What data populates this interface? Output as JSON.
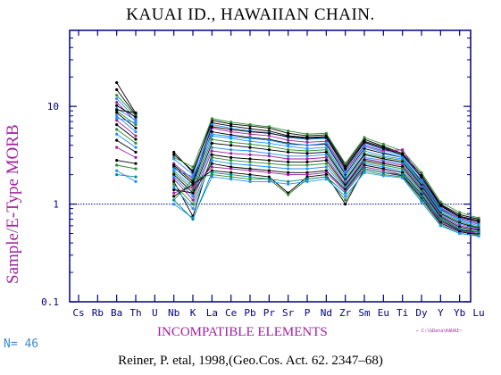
{
  "chart_data": {
    "type": "line",
    "title": "KAUAI ID., HAWAIIAN CHAIN.",
    "ylabel": "Sample/E-Type MORB",
    "xlabel": "INCOMPATIBLE ELEMENTS",
    "y_scale": "log",
    "ylim": [
      0.1,
      60
    ],
    "y_ticks": [
      {
        "value": 0.1,
        "label": "0.1"
      },
      {
        "value": 1,
        "label": "1"
      },
      {
        "value": 10,
        "label": "10"
      }
    ],
    "reference_line": 1,
    "categories": [
      "Cs",
      "Rb",
      "Ba",
      "Th",
      "U",
      "Nb",
      "K",
      "La",
      "Ce",
      "Pb",
      "Pr",
      "Sr",
      "P",
      "Nd",
      "Zr",
      "Sm",
      "Eu",
      "Ti",
      "Dy",
      "Y",
      "Yb",
      "Lu"
    ],
    "series": [
      {
        "color": "#000000",
        "values": [
          null,
          null,
          17.5,
          8.5,
          null,
          3.4,
          2.1,
          7.2,
          6.6,
          6.3,
          6.0,
          5.3,
          5.0,
          5.1,
          2.5,
          4.6,
          3.9,
          3.3,
          2.0,
          1.0,
          0.78,
          0.7
        ]
      },
      {
        "color": "#000000",
        "values": [
          null,
          null,
          14.8,
          8.2,
          null,
          3.2,
          2.2,
          6.8,
          6.3,
          5.9,
          5.6,
          5.0,
          4.8,
          4.9,
          2.4,
          4.4,
          3.8,
          3.2,
          1.9,
          0.98,
          0.75,
          0.68
        ]
      },
      {
        "color": "#2e8b2e",
        "values": [
          null,
          null,
          13.0,
          8.0,
          null,
          3.0,
          2.4,
          7.5,
          6.9,
          6.5,
          6.2,
          5.6,
          5.2,
          5.3,
          2.6,
          4.8,
          4.1,
          3.5,
          2.1,
          1.05,
          0.82,
          0.72
        ]
      },
      {
        "color": "#1e90ff",
        "values": [
          null,
          null,
          12.0,
          7.5,
          null,
          2.9,
          2.0,
          6.5,
          6.0,
          5.6,
          5.4,
          4.8,
          4.6,
          4.7,
          2.3,
          4.2,
          3.6,
          3.1,
          1.85,
          0.95,
          0.74,
          0.66
        ]
      },
      {
        "color": "#a020a0",
        "values": [
          null,
          null,
          11.0,
          7.0,
          null,
          2.6,
          1.8,
          6.0,
          5.5,
          5.2,
          5.0,
          4.5,
          4.3,
          4.4,
          2.2,
          4.0,
          3.5,
          3.6,
          1.8,
          0.92,
          0.72,
          0.64
        ]
      },
      {
        "color": "#000000",
        "values": [
          null,
          null,
          10.2,
          7.8,
          null,
          2.4,
          1.6,
          5.5,
          5.1,
          4.8,
          4.6,
          4.2,
          4.0,
          4.1,
          2.0,
          3.7,
          3.3,
          3.0,
          1.7,
          0.88,
          0.7,
          0.62
        ]
      },
      {
        "color": "#1e90ff",
        "values": [
          null,
          null,
          9.5,
          7.2,
          null,
          2.2,
          1.5,
          5.0,
          4.7,
          4.4,
          4.2,
          3.9,
          3.7,
          3.8,
          1.9,
          3.5,
          3.1,
          2.9,
          1.65,
          0.85,
          0.68,
          0.6
        ]
      },
      {
        "color": "#2e8b2e",
        "values": [
          null,
          null,
          9.0,
          6.5,
          null,
          2.1,
          1.4,
          4.6,
          4.3,
          4.1,
          3.9,
          3.6,
          3.5,
          3.6,
          1.8,
          3.3,
          3.0,
          2.8,
          1.6,
          0.82,
          0.66,
          0.58
        ]
      },
      {
        "color": "#000000",
        "values": [
          null,
          null,
          8.6,
          6.0,
          null,
          2.0,
          1.3,
          4.2,
          4.0,
          3.8,
          3.6,
          3.4,
          3.3,
          3.4,
          1.75,
          3.2,
          2.9,
          2.7,
          1.55,
          0.8,
          0.64,
          0.57
        ]
      },
      {
        "color": "#1e90ff",
        "values": [
          null,
          null,
          8.0,
          5.5,
          null,
          1.9,
          1.2,
          3.8,
          3.6,
          3.5,
          3.3,
          3.1,
          3.1,
          3.2,
          1.7,
          3.0,
          2.8,
          2.6,
          1.5,
          0.78,
          0.62,
          0.56
        ]
      },
      {
        "color": "#a020a0",
        "values": [
          null,
          null,
          7.2,
          5.0,
          null,
          1.8,
          1.1,
          3.5,
          3.3,
          3.2,
          3.1,
          2.9,
          2.9,
          3.0,
          1.6,
          2.9,
          2.7,
          2.5,
          1.45,
          0.76,
          0.6,
          0.55
        ]
      },
      {
        "color": "#000000",
        "values": [
          null,
          null,
          6.5,
          4.6,
          null,
          1.7,
          0.75,
          3.2,
          3.0,
          2.9,
          2.8,
          2.7,
          2.7,
          2.8,
          1.55,
          2.8,
          2.6,
          2.4,
          1.4,
          0.74,
          0.58,
          0.54
        ]
      },
      {
        "color": "#2e8b2e",
        "values": [
          null,
          null,
          5.8,
          4.2,
          null,
          1.6,
          1.0,
          3.0,
          2.8,
          2.7,
          2.6,
          2.5,
          2.5,
          2.6,
          1.5,
          2.7,
          2.5,
          2.3,
          1.35,
          0.72,
          0.56,
          0.52
        ]
      },
      {
        "color": "#1e90ff",
        "values": [
          null,
          null,
          5.2,
          3.8,
          null,
          1.5,
          0.9,
          2.8,
          2.6,
          2.5,
          2.4,
          2.3,
          2.3,
          2.4,
          1.45,
          2.6,
          2.4,
          2.2,
          1.3,
          0.7,
          0.55,
          0.5
        ]
      },
      {
        "color": "#000000",
        "values": [
          null,
          null,
          4.5,
          3.4,
          null,
          1.4,
          1.3,
          2.6,
          2.4,
          2.3,
          2.2,
          2.1,
          2.1,
          2.2,
          1.4,
          2.5,
          2.3,
          2.1,
          1.25,
          0.68,
          0.54,
          0.52
        ]
      },
      {
        "color": "#a020a0",
        "values": [
          null,
          null,
          3.8,
          3.0,
          null,
          1.3,
          1.5,
          2.4,
          2.3,
          2.2,
          2.1,
          2.0,
          2.0,
          2.1,
          1.35,
          2.4,
          2.2,
          2.0,
          1.2,
          0.66,
          0.53,
          0.5
        ]
      },
      {
        "color": "#000000",
        "values": [
          null,
          null,
          2.8,
          2.6,
          null,
          1.2,
          1.6,
          2.2,
          2.1,
          2.0,
          1.9,
          1.3,
          1.9,
          2.0,
          1.0,
          2.3,
          2.1,
          1.95,
          1.15,
          0.64,
          0.52,
          0.49
        ]
      },
      {
        "color": "#2e8b2e",
        "values": [
          null,
          null,
          2.5,
          2.3,
          null,
          1.1,
          1.8,
          2.0,
          1.9,
          1.8,
          1.8,
          1.25,
          1.8,
          1.9,
          1.1,
          2.2,
          2.0,
          1.9,
          1.1,
          0.62,
          0.5,
          0.48
        ]
      },
      {
        "color": "#1e90ff",
        "values": [
          null,
          null,
          2.2,
          1.7,
          null,
          1.0,
          0.72,
          1.9,
          1.8,
          1.7,
          1.7,
          1.6,
          1.7,
          1.8,
          1.2,
          2.1,
          1.95,
          1.85,
          1.05,
          0.6,
          0.5,
          0.47
        ]
      },
      {
        "color": "#008b8b",
        "values": [
          null,
          null,
          2.0,
          1.9,
          null,
          1.1,
          0.7,
          2.1,
          2.0,
          1.9,
          1.8,
          1.7,
          1.8,
          1.9,
          1.3,
          2.3,
          2.1,
          2.0,
          1.2,
          0.7,
          0.56,
          0.52
        ]
      },
      {
        "color": "#000000",
        "values": [
          null,
          null,
          9.2,
          8.6,
          null,
          2.5,
          1.7,
          6.2,
          5.8,
          5.5,
          5.3,
          4.9,
          4.7,
          4.8,
          2.3,
          4.3,
          3.7,
          3.2,
          1.9,
          0.96,
          0.74,
          0.66
        ]
      },
      {
        "color": "#1e90ff",
        "values": [
          null,
          null,
          7.6,
          6.8,
          null,
          2.3,
          1.9,
          5.2,
          4.9,
          4.7,
          4.5,
          4.1,
          4.0,
          4.2,
          2.1,
          3.9,
          3.4,
          3.0,
          1.75,
          0.9,
          0.7,
          0.62
        ]
      }
    ]
  },
  "footer": {
    "count": "N= 46",
    "file_note": "← C:\\GData\\KAUAI~",
    "citation": "Reiner, P. etal, 1998,(Geo.Cos. Act. 62. 2347–68)"
  },
  "colors": {
    "frame": "#000080",
    "reference_line": "#000080",
    "tick_label": "#000080",
    "title_text": "#000000",
    "axis_title": "#a020a0",
    "count_text": "#3a8bd6"
  }
}
